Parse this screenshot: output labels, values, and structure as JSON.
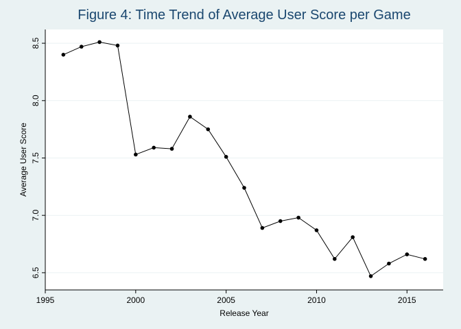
{
  "chart_data": {
    "type": "line",
    "title": "Figure 4: Time Trend of Average User Score per Game",
    "xlabel": "Release Year",
    "ylabel": "Average User Score",
    "xlim": [
      1995,
      2017
    ],
    "ylim": [
      6.35,
      8.62
    ],
    "xticks": [
      1995,
      2000,
      2005,
      2010,
      2015
    ],
    "yticks": [
      6.5,
      7.0,
      7.5,
      8.0,
      8.5
    ],
    "grid": true,
    "series": [
      {
        "x": [
          1996,
          1997,
          1998,
          1999,
          2000,
          2001,
          2002,
          2003,
          2004,
          2005,
          2006,
          2007,
          2008,
          2009,
          2010,
          2011,
          2012,
          2013,
          2014,
          2015,
          2016
        ],
        "values": [
          8.4,
          8.47,
          8.51,
          8.48,
          7.53,
          7.59,
          7.58,
          7.86,
          7.75,
          7.51,
          7.24,
          6.89,
          6.95,
          6.98,
          6.87,
          6.62,
          6.81,
          6.47,
          6.58,
          6.66,
          6.62
        ]
      }
    ],
    "colors": {
      "background": "#eaf2f3",
      "plot_bg": "#ffffff",
      "line": "#000000",
      "title": "#1a476f"
    }
  }
}
